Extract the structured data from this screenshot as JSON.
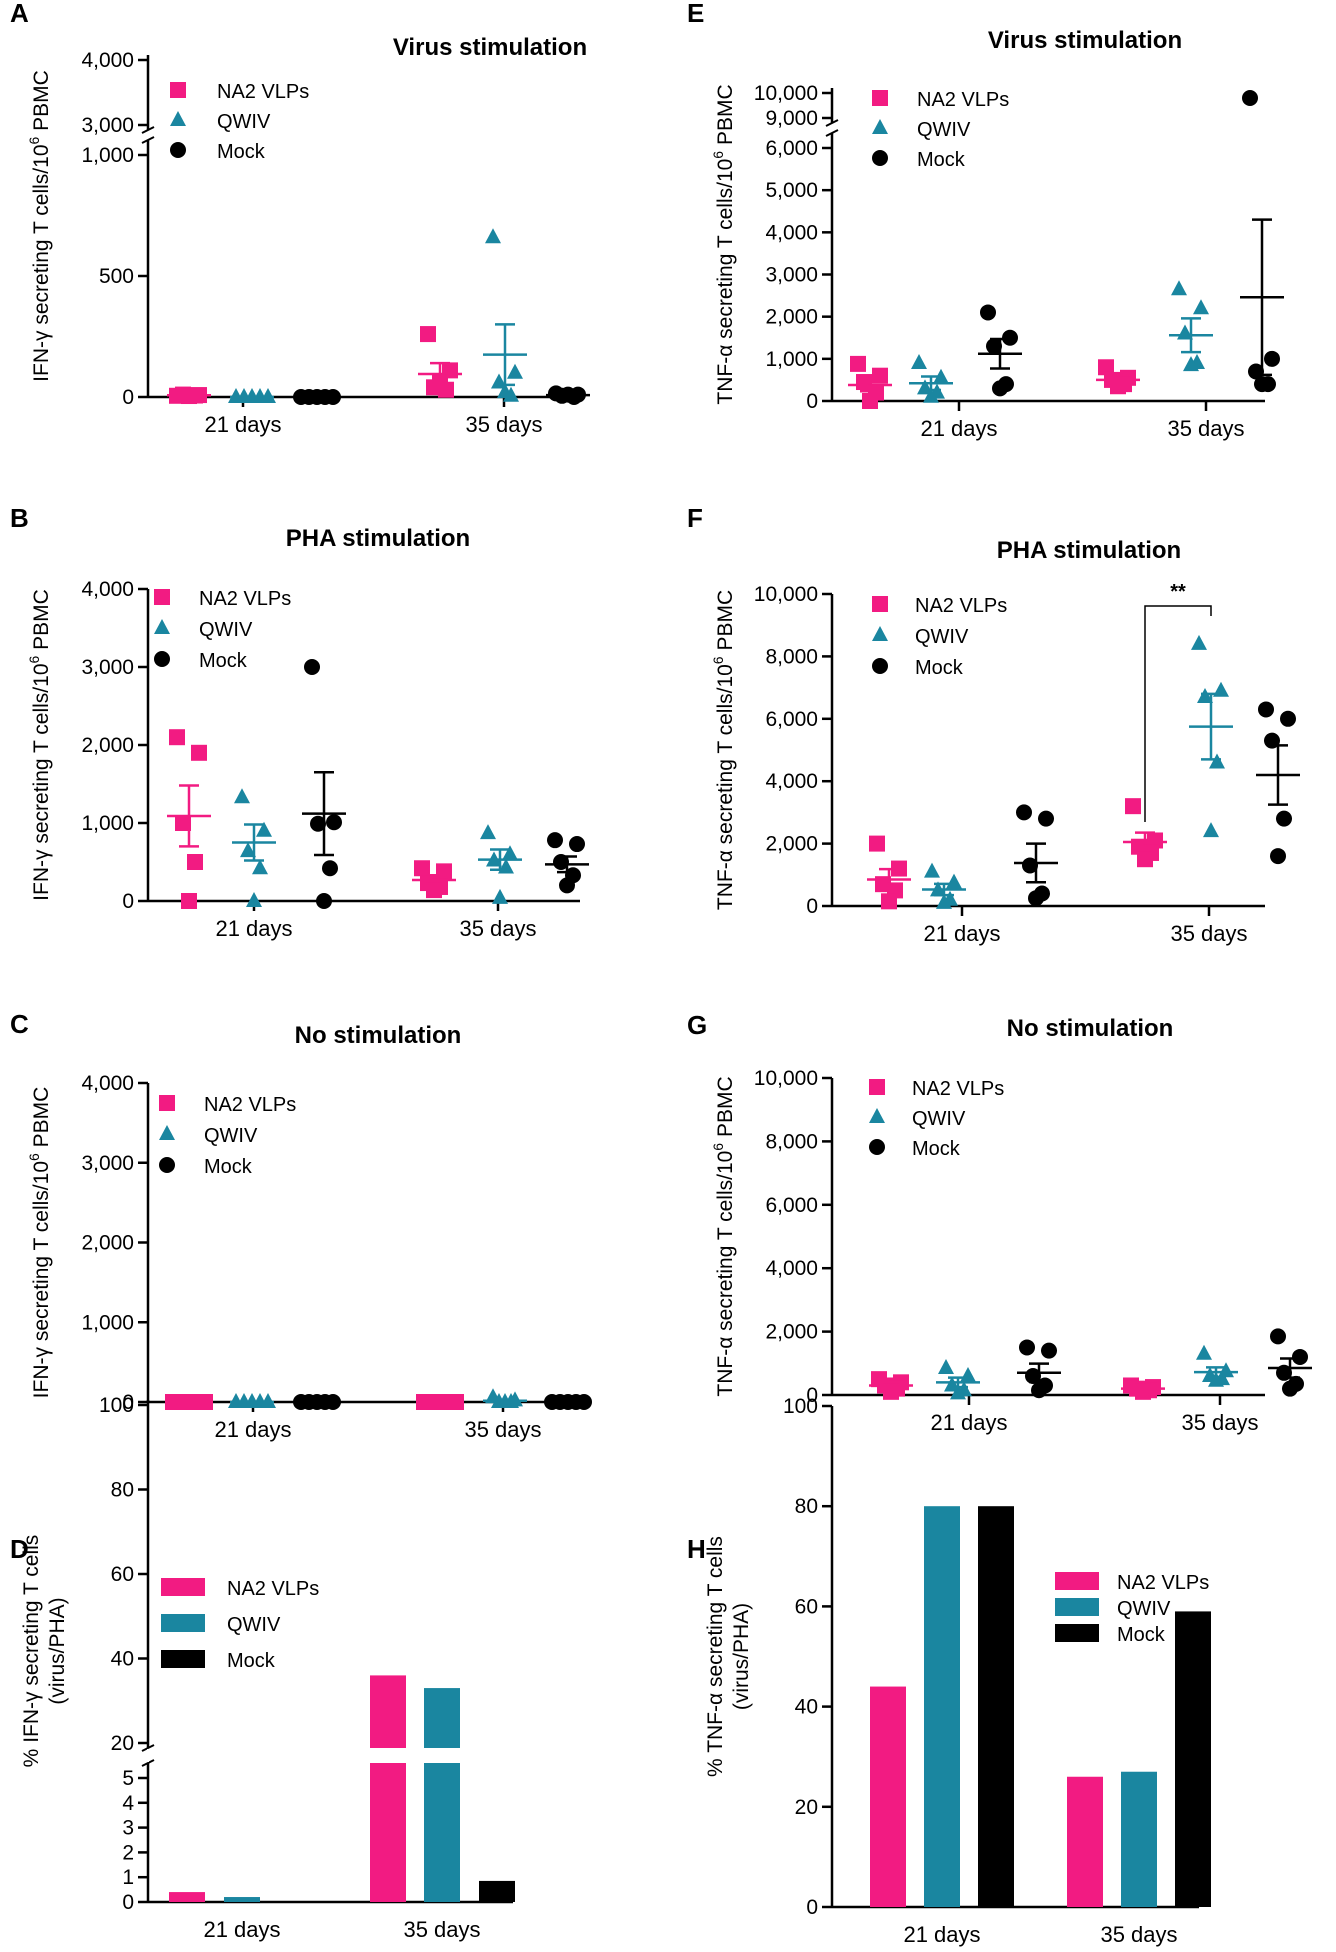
{
  "colors": {
    "na2": "#f21b82",
    "qwiv": "#1a86a0",
    "mock": "#000000"
  },
  "chart_data": [
    {
      "id": "A",
      "type": "scatter",
      "title": "Virus stimulation",
      "ylabel_pre": "IFN-γ secreting T cells/10",
      "ylabel_sup": "6",
      "ylabel_post": " PBMC",
      "categories": [
        "21 days",
        "35 days"
      ],
      "axis": {
        "lower": [
          0,
          1000
        ],
        "upper": [
          3000,
          4000
        ],
        "lower_ticks": [
          "0",
          "500",
          "1,000"
        ],
        "lower_tick_values": [
          0,
          500,
          1000
        ],
        "upper_ticks": [
          "3,000",
          "4,000"
        ],
        "upper_tick_values": [
          3000,
          4000
        ]
      },
      "legend": [
        "NA2 VLPs",
        "QWIV",
        "Mock"
      ],
      "series": [
        {
          "name": "NA2 VLPs",
          "marker": "square",
          "groups": [
            {
              "points": [
                5,
                8,
                10,
                6,
                4
              ],
              "mean": 7,
              "sem": 2
            },
            {
              "points": [
                260,
                110,
                40,
                30,
                60
              ],
              "mean": 95,
              "sem": 45
            }
          ]
        },
        {
          "name": "QWIV",
          "marker": "triangle",
          "groups": [
            {
              "points": [
                0,
                0,
                0,
                0,
                0
              ],
              "mean": 0,
              "sem": 0
            },
            {
              "points": [
                660,
                100,
                60,
                5,
                20
              ],
              "mean": 175,
              "sem": 125
            }
          ]
        },
        {
          "name": "Mock",
          "marker": "circle",
          "groups": [
            {
              "points": [
                0,
                0,
                0,
                0,
                0
              ],
              "mean": 0,
              "sem": 0
            },
            {
              "points": [
                15,
                10,
                5,
                0,
                10
              ],
              "mean": 8,
              "sem": 3
            }
          ]
        }
      ]
    },
    {
      "id": "B",
      "type": "scatter",
      "title": "PHA stimulation",
      "ylabel_pre": "IFN-γ secreting T cells/10",
      "ylabel_sup": "6",
      "ylabel_post": " PBMC",
      "categories": [
        "21 days",
        "35 days"
      ],
      "axis": {
        "ylim": [
          0,
          4000
        ],
        "ticks": [
          "0",
          "1,000",
          "2,000",
          "3,000",
          "4,000"
        ],
        "tick_values": [
          0,
          1000,
          2000,
          3000,
          4000
        ]
      },
      "legend": [
        "NA2 VLPs",
        "QWIV",
        "Mock"
      ],
      "series": [
        {
          "name": "NA2 VLPs",
          "marker": "square",
          "groups": [
            {
              "points": [
                2100,
                1900,
                1000,
                500,
                0
              ],
              "mean": 1090,
              "sem": 390
            },
            {
              "points": [
                420,
                380,
                230,
                180,
                140
              ],
              "mean": 270,
              "sem": 60
            }
          ]
        },
        {
          "name": "QWIV",
          "marker": "triangle",
          "groups": [
            {
              "points": [
                1330,
                900,
                640,
                420,
                0
              ],
              "mean": 750,
              "sem": 230
            },
            {
              "points": [
                870,
                600,
                520,
                430,
                40
              ],
              "mean": 530,
              "sem": 130
            }
          ]
        },
        {
          "name": "Mock",
          "marker": "circle",
          "groups": [
            {
              "points": [
                3000,
                1010,
                990,
                420,
                0
              ],
              "mean": 1120,
              "sem": 530
            },
            {
              "points": [
                780,
                730,
                500,
                330,
                200
              ],
              "mean": 470,
              "sem": 100
            }
          ]
        }
      ]
    },
    {
      "id": "C",
      "type": "scatter",
      "title": "No stimulation",
      "ylabel_pre": "IFN-γ secreting T cells/10",
      "ylabel_sup": "6",
      "ylabel_post": " PBMC",
      "categories": [
        "21 days",
        "35 days"
      ],
      "axis": {
        "ylim": [
          0,
          4000
        ],
        "ticks": [
          "0",
          "1,000",
          "2,000",
          "3,000",
          "4,000"
        ],
        "tick_values": [
          0,
          1000,
          2000,
          3000,
          4000
        ]
      },
      "legend": [
        "NA2 VLPs",
        "QWIV",
        "Mock"
      ],
      "series": [
        {
          "name": "NA2 VLPs",
          "marker": "square",
          "groups": [
            {
              "points": [
                0,
                0,
                0,
                0,
                0
              ],
              "mean": 0,
              "sem": 0
            },
            {
              "points": [
                0,
                0,
                0,
                0,
                0
              ],
              "mean": 0,
              "sem": 0
            }
          ]
        },
        {
          "name": "QWIV",
          "marker": "triangle",
          "groups": [
            {
              "points": [
                0,
                0,
                0,
                0,
                0
              ],
              "mean": 0,
              "sem": 0
            },
            {
              "points": [
                60,
                20,
                0,
                0,
                0
              ],
              "mean": 16,
              "sem": 10
            }
          ]
        },
        {
          "name": "Mock",
          "marker": "circle",
          "groups": [
            {
              "points": [
                0,
                0,
                0,
                0,
                0
              ],
              "mean": 0,
              "sem": 0
            },
            {
              "points": [
                0,
                0,
                0,
                0,
                0
              ],
              "mean": 0,
              "sem": 0
            }
          ]
        }
      ]
    },
    {
      "id": "D",
      "type": "bar",
      "ylabel1": "% IFN-γ secreting T cells",
      "ylabel2": "(virus/PHA)",
      "categories": [
        "21 days",
        "35 days"
      ],
      "axis": {
        "lower": [
          0,
          5
        ],
        "upper": [
          20,
          100
        ],
        "lower_ticks": [
          "0",
          "1",
          "2",
          "3",
          "4",
          "5"
        ],
        "lower_tick_values": [
          0,
          1,
          2,
          3,
          4,
          5
        ],
        "upper_ticks": [
          "20",
          "40",
          "60",
          "80",
          "100"
        ],
        "upper_tick_values": [
          20,
          40,
          60,
          80,
          100
        ]
      },
      "legend": [
        "NA2 VLPs",
        "QWIV",
        "Mock"
      ],
      "series": [
        {
          "name": "NA2 VLPs",
          "values": [
            0.4,
            36
          ]
        },
        {
          "name": "QWIV",
          "values": [
            0.2,
            33
          ]
        },
        {
          "name": "Mock",
          "values": [
            0,
            0.85
          ]
        }
      ]
    },
    {
      "id": "E",
      "type": "scatter",
      "title": "Virus stimulation",
      "ylabel_pre": "TNF-α secreting T cells/10",
      "ylabel_sup": "6",
      "ylabel_post": " PBMC",
      "categories": [
        "21 days",
        "35 days"
      ],
      "axis": {
        "lower": [
          0,
          6000
        ],
        "upper": [
          9000,
          10000
        ],
        "lower_ticks": [
          "0",
          "1,000",
          "2,000",
          "3,000",
          "4,000",
          "5,000",
          "6,000"
        ],
        "lower_tick_values": [
          0,
          1000,
          2000,
          3000,
          4000,
          5000,
          6000
        ],
        "upper_ticks": [
          "9,000",
          "10,000"
        ],
        "upper_tick_values": [
          9000,
          10000
        ]
      },
      "legend": [
        "NA2 VLPs",
        "QWIV",
        "Mock"
      ],
      "series": [
        {
          "name": "NA2 VLPs",
          "marker": "square",
          "groups": [
            {
              "points": [
                880,
                600,
                450,
                200,
                0
              ],
              "mean": 380,
              "sem": 150
            },
            {
              "points": [
                800,
                550,
                500,
                400,
                350
              ],
              "mean": 500,
              "sem": 100
            }
          ]
        },
        {
          "name": "QWIV",
          "marker": "triangle",
          "groups": [
            {
              "points": [
                900,
                550,
                300,
                200,
                100
              ],
              "mean": 420,
              "sem": 160
            },
            {
              "points": [
                2650,
                2200,
                1600,
                900,
                850
              ],
              "mean": 1560,
              "sem": 400
            }
          ]
        },
        {
          "name": "Mock",
          "marker": "circle",
          "groups": [
            {
              "points": [
                2100,
                1500,
                1300,
                400,
                300
              ],
              "mean": 1120,
              "sem": 350
            },
            {
              "points": [
                9800,
                1000,
                700,
                400,
                400
              ],
              "mean": 2460,
              "sem": 1840
            }
          ]
        }
      ]
    },
    {
      "id": "F",
      "type": "scatter",
      "title": "PHA stimulation",
      "ylabel_pre": "TNF-α secreting T cells/10",
      "ylabel_sup": "6",
      "ylabel_post": " PBMC",
      "categories": [
        "21 days",
        "35 days"
      ],
      "axis": {
        "ylim": [
          0,
          10000
        ],
        "ticks": [
          "0",
          "2,000",
          "4,000",
          "6,000",
          "8,000",
          "10,000"
        ],
        "tick_values": [
          0,
          2000,
          4000,
          6000,
          8000,
          10000
        ]
      },
      "legend": [
        "NA2 VLPs",
        "QWIV",
        "Mock"
      ],
      "significance": {
        "label": "**",
        "from_series": 0,
        "to_series": 1,
        "category": 1
      },
      "series": [
        {
          "name": "NA2 VLPs",
          "marker": "square",
          "groups": [
            {
              "points": [
                2000,
                1200,
                700,
                500,
                150
              ],
              "mean": 850,
              "sem": 330
            },
            {
              "points": [
                3200,
                2100,
                1900,
                1700,
                1500
              ],
              "mean": 2050,
              "sem": 300
            }
          ]
        },
        {
          "name": "QWIV",
          "marker": "triangle",
          "groups": [
            {
              "points": [
                1100,
                750,
                500,
                200,
                100
              ],
              "mean": 530,
              "sem": 180
            },
            {
              "points": [
                8400,
                6900,
                6700,
                4600,
                2400
              ],
              "mean": 5750,
              "sem": 1050
            }
          ]
        },
        {
          "name": "Mock",
          "marker": "circle",
          "groups": [
            {
              "points": [
                3000,
                2800,
                1300,
                400,
                250
              ],
              "mean": 1380,
              "sem": 620
            },
            {
              "points": [
                6300,
                6000,
                5300,
                2800,
                1600
              ],
              "mean": 4200,
              "sem": 950
            }
          ]
        }
      ]
    },
    {
      "id": "G",
      "type": "scatter",
      "title": "No stimulation",
      "ylabel_pre": "TNF-α secreting T cells/10",
      "ylabel_sup": "6",
      "ylabel_post": " PBMC",
      "categories": [
        "21 days",
        "35 days"
      ],
      "axis": {
        "ylim": [
          0,
          10000
        ],
        "ticks": [
          "0",
          "2,000",
          "4,000",
          "6,000",
          "8,000",
          "10,000"
        ],
        "tick_values": [
          0,
          2000,
          4000,
          6000,
          8000,
          10000
        ]
      },
      "legend": [
        "NA2 VLPs",
        "QWIV",
        "Mock"
      ],
      "series": [
        {
          "name": "NA2 VLPs",
          "marker": "square",
          "groups": [
            {
              "points": [
                500,
                400,
                300,
                200,
                100
              ],
              "mean": 300,
              "sem": 70
            },
            {
              "points": [
                300,
                250,
                200,
                150,
                100
              ],
              "mean": 200,
              "sem": 35
            }
          ]
        },
        {
          "name": "QWIV",
          "marker": "triangle",
          "groups": [
            {
              "points": [
                850,
                600,
                300,
                150,
                50
              ],
              "mean": 400,
              "sem": 150
            },
            {
              "points": [
                1300,
                750,
                600,
                500,
                450
              ],
              "mean": 720,
              "sem": 150
            }
          ]
        },
        {
          "name": "Mock",
          "marker": "circle",
          "groups": [
            {
              "points": [
                1500,
                1400,
                600,
                300,
                150
              ],
              "mean": 700,
              "sem": 290
            },
            {
              "points": [
                1850,
                1200,
                700,
                350,
                200
              ],
              "mean": 850,
              "sem": 300
            }
          ]
        }
      ]
    },
    {
      "id": "H",
      "type": "bar",
      "ylabel1": "% TNF-α secreting T cells",
      "ylabel2": "(virus/PHA)",
      "categories": [
        "21 days",
        "35 days"
      ],
      "axis": {
        "ylim": [
          0,
          100
        ],
        "ticks": [
          "0",
          "20",
          "40",
          "60",
          "80",
          "100"
        ],
        "tick_values": [
          0,
          20,
          40,
          60,
          80,
          100
        ]
      },
      "legend": [
        "NA2 VLPs",
        "QWIV",
        "Mock"
      ],
      "series": [
        {
          "name": "NA2 VLPs",
          "values": [
            44,
            26
          ]
        },
        {
          "name": "QWIV",
          "values": [
            80,
            27
          ]
        },
        {
          "name": "Mock",
          "values": [
            80,
            59
          ]
        }
      ]
    }
  ]
}
